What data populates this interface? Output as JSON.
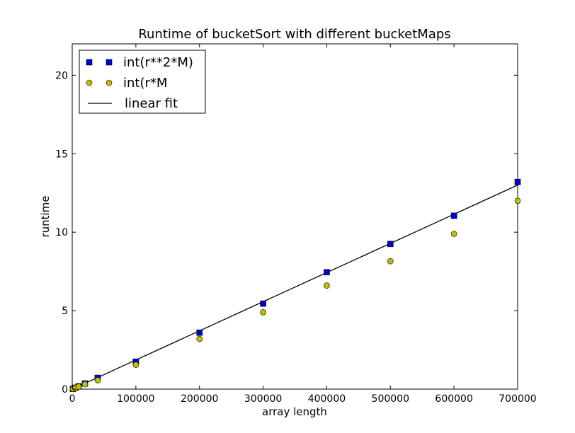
{
  "chart_data": {
    "type": "scatter",
    "title": "Runtime of bucketSort with different bucketMaps",
    "xlabel": "array length",
    "ylabel": "runtime",
    "xlim": [
      0,
      700000
    ],
    "ylim": [
      0,
      22
    ],
    "xticks": [
      0,
      100000,
      200000,
      300000,
      400000,
      500000,
      600000,
      700000
    ],
    "yticks": [
      0,
      5,
      10,
      15,
      20
    ],
    "grid": false,
    "legend_position": "top-left",
    "series": [
      {
        "name": "int(r**2*M)",
        "marker": "square",
        "color": "#0000cc",
        "x": [
          1000,
          5000,
          10000,
          20000,
          40000,
          100000,
          200000,
          300000,
          400000,
          500000,
          600000,
          700000
        ],
        "y": [
          0.02,
          0.09,
          0.18,
          0.36,
          0.72,
          1.75,
          3.6,
          5.45,
          7.45,
          9.25,
          11.05,
          13.2
        ]
      },
      {
        "name": "int(r*M",
        "marker": "circle",
        "color": "#bfbf00",
        "x": [
          1000,
          5000,
          10000,
          20000,
          40000,
          100000,
          200000,
          300000,
          400000,
          500000,
          600000,
          700000
        ],
        "y": [
          0.02,
          0.08,
          0.16,
          0.31,
          0.57,
          1.55,
          3.2,
          4.9,
          6.6,
          8.15,
          9.9,
          12.0
        ]
      },
      {
        "name": "linear fit",
        "marker": "line",
        "color": "#000000",
        "x": [
          0,
          700000
        ],
        "y": [
          0,
          13.0
        ]
      }
    ]
  }
}
